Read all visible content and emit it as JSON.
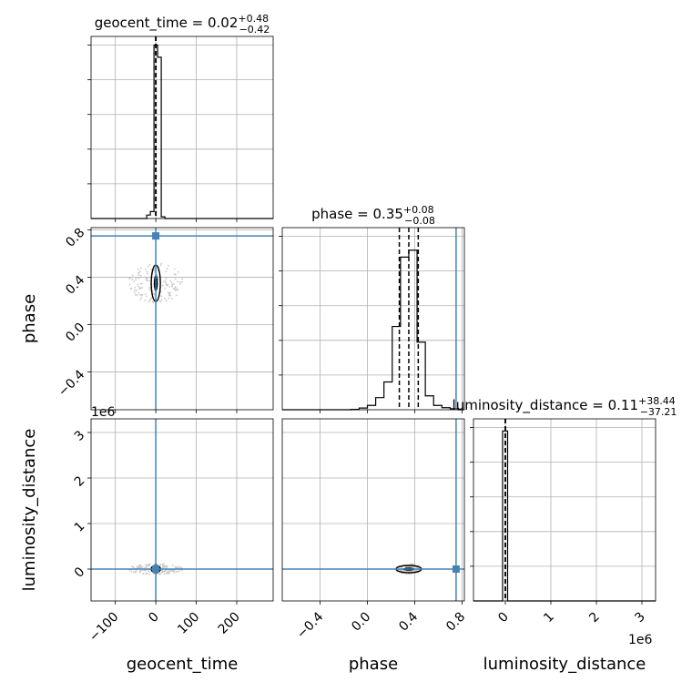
{
  "chart_data": {
    "type": "corner",
    "parameters": [
      "geocent_time",
      "phase",
      "luminosity_distance"
    ],
    "truths": {
      "geocent_time": 0.0,
      "phase": 0.75,
      "luminosity_distance": 0.0
    },
    "truth_color": "#4682b4",
    "panels": {
      "geocent_time": {
        "title_prefix": "geocent_time = 0.02",
        "title_plus": "+0.48",
        "title_minus": "−0.42",
        "xlim": [
          -160,
          290
        ],
        "quantiles": [
          -0.4,
          0.02,
          0.5
        ],
        "hist_edges": [
          -22.5,
          -13.5,
          -4.5,
          4.5,
          13.5,
          22.5,
          31.5
        ],
        "hist_counts": [
          0.02,
          0.04,
          1.0,
          0.93,
          0.01,
          0.0
        ],
        "hist_ymax": 1.05
      },
      "phase": {
        "title_prefix": "phase = 0.35",
        "title_plus": "+0.08",
        "title_minus": "−0.08",
        "xlim": [
          -0.72,
          0.82
        ],
        "ylim": [
          -0.72,
          0.82
        ],
        "quantiles": [
          0.27,
          0.35,
          0.43
        ],
        "hist_edges": [
          -0.14,
          -0.07,
          0.0,
          0.07,
          0.14,
          0.21,
          0.28,
          0.35,
          0.42,
          0.49,
          0.56,
          0.63,
          0.7,
          0.77
        ],
        "hist_counts": [
          0.002,
          0.01,
          0.025,
          0.07,
          0.16,
          0.48,
          0.88,
          0.92,
          0.39,
          0.08,
          0.025,
          0.012,
          0.006
        ],
        "hist_ymax": 1.05
      },
      "luminosity_distance": {
        "title_prefix": "luminosity_distance = 0.11",
        "title_plus": "+38.44",
        "title_minus": "−37.21",
        "xlim": [
          -700000,
          3300000
        ],
        "ylim": [
          -700000,
          3300000
        ],
        "quantiles": [
          -37.1,
          0.11,
          38.55
        ],
        "hist_edges": [
          -60000,
          50000
        ],
        "hist_counts": [
          0.98
        ],
        "hist_ymax": 1.05,
        "offset_label": "1e6"
      }
    },
    "ticks": {
      "geocent_time": {
        "values": [
          -100,
          0,
          100,
          200
        ],
        "labels": [
          "−100",
          "0",
          "100",
          "200"
        ]
      },
      "phase": {
        "values": [
          -0.4,
          0.0,
          0.4,
          0.8
        ],
        "labels": [
          "−0.4",
          "0.0",
          "0.4",
          "0.8"
        ]
      },
      "luminosity_distance": {
        "values": [
          0,
          1000000,
          2000000,
          3000000
        ],
        "labels": [
          "0",
          "1",
          "2",
          "3"
        ]
      }
    },
    "axis_labels": {
      "geocent_time": "geocent_time",
      "phase": "phase",
      "luminosity_distance": "luminosity_distance"
    },
    "grid": true
  }
}
